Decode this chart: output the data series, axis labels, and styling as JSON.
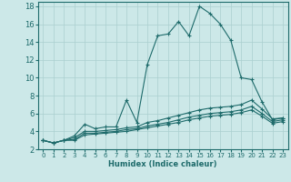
{
  "xlabel": "Humidex (Indice chaleur)",
  "ylabel": "",
  "bg_color": "#cce8e8",
  "grid_color": "#aacfcf",
  "line_color": "#1e6b6b",
  "xlim": [
    -0.5,
    23.5
  ],
  "ylim": [
    2,
    18.5
  ],
  "xticks": [
    0,
    1,
    2,
    3,
    4,
    5,
    6,
    7,
    8,
    9,
    10,
    11,
    12,
    13,
    14,
    15,
    16,
    17,
    18,
    19,
    20,
    21,
    22,
    23
  ],
  "yticks": [
    2,
    4,
    6,
    8,
    10,
    12,
    14,
    16,
    18
  ],
  "curve1_x": [
    0,
    1,
    2,
    3,
    4,
    5,
    6,
    7,
    8,
    9,
    10,
    11,
    12,
    13,
    14,
    15,
    16,
    17,
    18,
    19,
    20,
    21,
    22,
    23
  ],
  "curve1_y": [
    3.0,
    2.7,
    3.0,
    3.5,
    4.8,
    4.3,
    4.5,
    4.5,
    7.5,
    5.0,
    11.5,
    14.7,
    14.9,
    16.3,
    14.7,
    18.0,
    17.2,
    16.0,
    14.2,
    10.0,
    9.8,
    7.3,
    5.3,
    5.5
  ],
  "curve2_x": [
    0,
    1,
    2,
    3,
    4,
    5,
    6,
    7,
    8,
    9,
    10,
    11,
    12,
    13,
    14,
    15,
    16,
    17,
    18,
    19,
    20,
    21,
    22,
    23
  ],
  "curve2_y": [
    3.0,
    2.7,
    3.0,
    3.3,
    4.0,
    4.0,
    4.1,
    4.2,
    4.4,
    4.5,
    5.0,
    5.2,
    5.5,
    5.8,
    6.1,
    6.4,
    6.6,
    6.7,
    6.8,
    7.0,
    7.5,
    6.5,
    5.4,
    5.5
  ],
  "curve3_x": [
    0,
    1,
    2,
    3,
    4,
    5,
    6,
    7,
    8,
    9,
    10,
    11,
    12,
    13,
    14,
    15,
    16,
    17,
    18,
    19,
    20,
    21,
    22,
    23
  ],
  "curve3_y": [
    3.0,
    2.7,
    3.0,
    3.1,
    3.8,
    3.8,
    3.9,
    4.0,
    4.2,
    4.3,
    4.6,
    4.8,
    5.0,
    5.3,
    5.6,
    5.8,
    6.0,
    6.1,
    6.2,
    6.4,
    6.8,
    6.0,
    5.1,
    5.3
  ],
  "curve4_x": [
    0,
    1,
    2,
    3,
    4,
    5,
    6,
    7,
    8,
    9,
    10,
    11,
    12,
    13,
    14,
    15,
    16,
    17,
    18,
    19,
    20,
    21,
    22,
    23
  ],
  "curve4_y": [
    3.0,
    2.7,
    3.0,
    3.0,
    3.6,
    3.7,
    3.8,
    3.9,
    4.0,
    4.2,
    4.4,
    4.6,
    4.8,
    5.0,
    5.3,
    5.5,
    5.7,
    5.8,
    5.9,
    6.1,
    6.4,
    5.7,
    4.9,
    5.1
  ]
}
